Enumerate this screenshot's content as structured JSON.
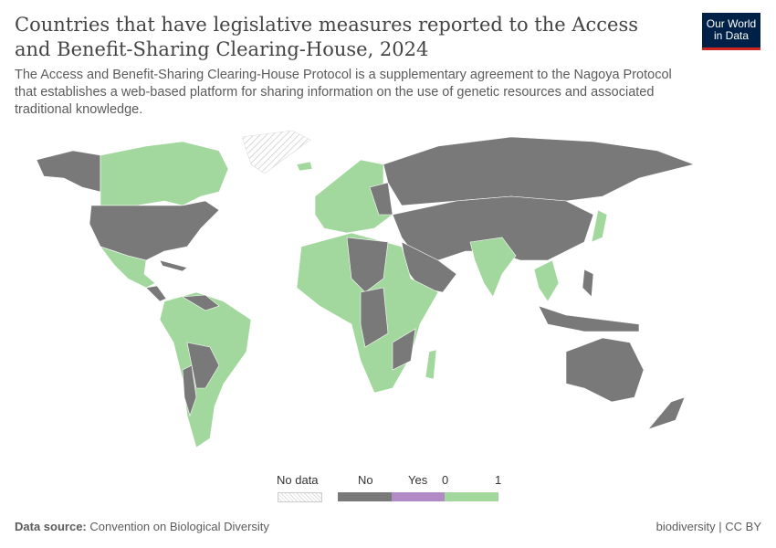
{
  "header": {
    "title": "Countries that have legislative measures reported to the Access and Benefit-Sharing Clearing-House, 2024",
    "subtitle": "The Access and Benefit-Sharing Clearing-House Protocol is a supplementary agreement to the Nagoya Protocol that establishes a web-based platform for sharing information on the use of genetic resources and associated traditional knowledge.",
    "logo": "Our World in Data"
  },
  "legend": {
    "no_data": "No data",
    "no": "No",
    "yes": "Yes",
    "zero": "0",
    "one": "1"
  },
  "colors": {
    "no": "#797979",
    "yes": "#b08bc5",
    "one": "#a2d89d",
    "no_data": "hatched"
  },
  "footer": {
    "source_label": "Data source:",
    "source": "Convention on Biological Diversity",
    "right": "biodiversity | CC BY"
  }
}
